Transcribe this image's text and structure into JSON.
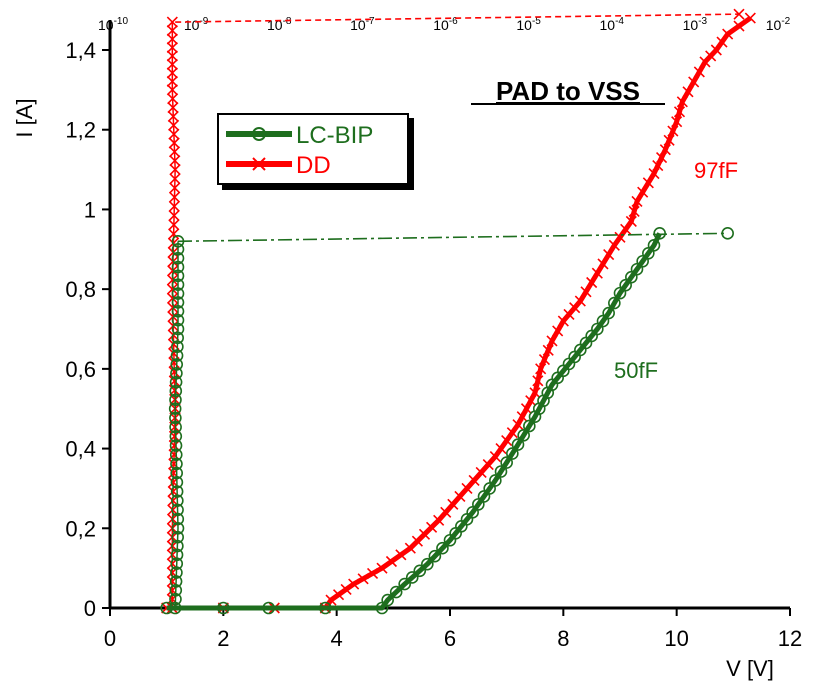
{
  "chart_data": {
    "type": "line",
    "title": "PAD to VSS",
    "xlabel": "V [V]",
    "ylabel": "I [A]",
    "xlim": [
      0,
      12
    ],
    "ylim": [
      0,
      1.5
    ],
    "x_ticks": [
      "0",
      "2",
      "4",
      "6",
      "8",
      "10",
      "12"
    ],
    "y_ticks": [
      "0",
      "0,2",
      "0,4",
      "0,6",
      "0,8",
      "1",
      "1,2",
      "1,4"
    ],
    "top_axis": {
      "scale": "log",
      "range": [
        -10,
        -2
      ],
      "tick_base": "10",
      "tick_exponents": [
        "-10",
        "-9",
        "-8",
        "-7",
        "-6",
        "-5",
        "-4",
        "-3",
        "-2"
      ]
    },
    "legend": [
      "LC-BIP",
      "DD"
    ],
    "legend_position": "top-left",
    "annotations": [
      {
        "text": "97fF",
        "color": "#ff0000"
      },
      {
        "text": "50fF",
        "color": "#1e6e1e"
      }
    ],
    "series": [
      {
        "name": "DD",
        "color": "#ff0000",
        "marker": "x",
        "iv_points": [
          [
            1.0,
            0
          ],
          [
            2.0,
            0
          ],
          [
            2.9,
            0
          ],
          [
            3.8,
            0
          ],
          [
            3.9,
            0.02
          ],
          [
            4.3,
            0.06
          ],
          [
            4.8,
            0.1
          ],
          [
            5.3,
            0.15
          ],
          [
            5.8,
            0.22
          ],
          [
            6.3,
            0.3
          ],
          [
            6.8,
            0.38
          ],
          [
            7.2,
            0.46
          ],
          [
            7.5,
            0.54
          ],
          [
            7.6,
            0.6
          ],
          [
            7.8,
            0.67
          ],
          [
            8.0,
            0.72
          ],
          [
            8.3,
            0.77
          ],
          [
            8.6,
            0.84
          ],
          [
            8.9,
            0.91
          ],
          [
            9.2,
            0.97
          ],
          [
            9.3,
            1.02
          ],
          [
            9.6,
            1.09
          ],
          [
            9.8,
            1.15
          ],
          [
            10.0,
            1.22
          ],
          [
            10.1,
            1.27
          ],
          [
            10.3,
            1.32
          ],
          [
            10.5,
            1.37
          ],
          [
            10.7,
            1.4
          ],
          [
            10.9,
            1.44
          ],
          [
            11.1,
            1.46
          ],
          [
            11.3,
            1.48
          ]
        ],
        "leakage_points": [
          [
            1.1,
            0
          ],
          [
            1.1,
            0.2
          ],
          [
            1.15,
            0.5
          ],
          [
            1.1,
            0.8
          ],
          [
            1.15,
            1.1
          ],
          [
            1.1,
            1.3
          ],
          [
            1.1,
            1.47
          ]
        ],
        "leakage_connector": [
          [
            1.15,
            1.47
          ],
          [
            11.1,
            1.49
          ]
        ]
      },
      {
        "name": "LC-BIP",
        "color": "#1e6e1e",
        "marker": "o",
        "iv_points": [
          [
            1.0,
            0
          ],
          [
            2.0,
            0
          ],
          [
            2.8,
            0
          ],
          [
            3.8,
            0
          ],
          [
            4.8,
            0
          ],
          [
            4.9,
            0.02
          ],
          [
            5.2,
            0.06
          ],
          [
            5.6,
            0.11
          ],
          [
            6.0,
            0.17
          ],
          [
            6.4,
            0.24
          ],
          [
            6.8,
            0.32
          ],
          [
            7.2,
            0.41
          ],
          [
            7.5,
            0.48
          ],
          [
            7.8,
            0.56
          ],
          [
            8.2,
            0.63
          ],
          [
            8.6,
            0.7
          ],
          [
            8.8,
            0.74
          ],
          [
            9.0,
            0.79
          ],
          [
            9.2,
            0.83
          ],
          [
            9.4,
            0.87
          ],
          [
            9.6,
            0.91
          ],
          [
            9.7,
            0.94
          ]
        ],
        "leakage_points": [
          [
            1.15,
            0
          ],
          [
            1.2,
            0.2
          ],
          [
            1.15,
            0.5
          ],
          [
            1.2,
            0.7
          ],
          [
            1.2,
            0.9
          ],
          [
            1.2,
            0.92
          ]
        ],
        "leakage_connector": [
          [
            1.2,
            0.92
          ],
          [
            10.9,
            0.94
          ]
        ]
      }
    ]
  }
}
